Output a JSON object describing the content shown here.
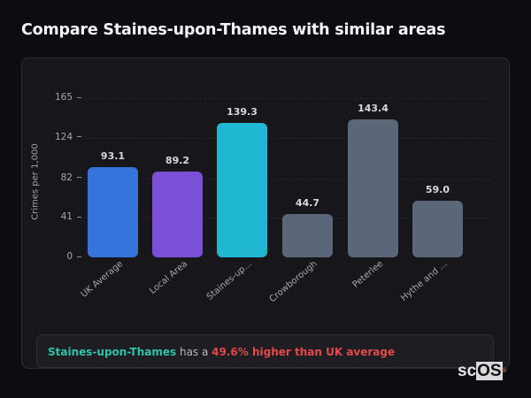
{
  "header": {
    "title": "Compare Staines-upon-Thames with similar areas"
  },
  "chart_data": {
    "type": "bar",
    "title": "Compare Staines-upon-Thames with similar areas",
    "xlabel": "",
    "ylabel": "Crimes per 1,000",
    "ylim": [
      0,
      165
    ],
    "yticks": [
      0,
      41,
      82,
      124,
      165
    ],
    "grid": true,
    "legend": null,
    "categories": [
      "UK Average",
      "Local Area",
      "Staines-up...",
      "Crowborough",
      "Peterlee",
      "Hythe and ..."
    ],
    "values": [
      93.1,
      89.2,
      139.3,
      44.7,
      143.4,
      59.0
    ],
    "value_labels": [
      "93.1",
      "89.2",
      "139.3",
      "44.7",
      "143.4",
      "59.0"
    ],
    "colors": [
      "#3574db",
      "#7b4fd6",
      "#1fb7d1",
      "#5c6679",
      "#5c6679",
      "#5c6679"
    ]
  },
  "insight": {
    "place": "Staines-upon-Thames",
    "connector": " has a ",
    "difference": "49.6% higher than UK average",
    "place_color": "#2ec4a6",
    "difference_color": "#e5484d"
  },
  "watermark": {
    "prefix": "sc",
    "suffix": "OS",
    "mark": "®"
  }
}
